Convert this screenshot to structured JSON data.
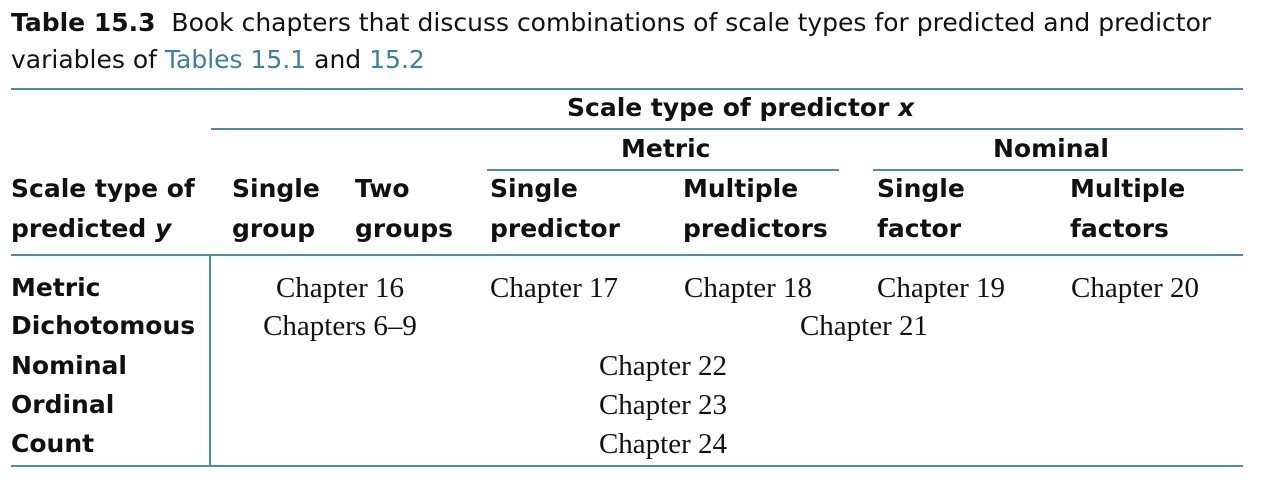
{
  "caption": {
    "number": "Table 15.3",
    "text_1": "Book chapters that discuss combinations of scale types for predicted and predictor variables of",
    "ref_1": "Tables 15.1",
    "and": "and",
    "ref_2": "15.2"
  },
  "header": {
    "predictor_title_prefix": "Scale type of predictor",
    "predictor_var": "x",
    "metric_group": "Metric",
    "nominal_group": "Nominal",
    "predicted_line1": "Scale type of",
    "predicted_line2_prefix": "predicted",
    "predicted_var": "y",
    "columns": [
      {
        "line1": "Single",
        "line2": "group"
      },
      {
        "line1": "Two",
        "line2": "groups"
      },
      {
        "line1": "Single",
        "line2": "predictor"
      },
      {
        "line1": "Multiple",
        "line2": "predictors"
      },
      {
        "line1": "Single",
        "line2": "factor"
      },
      {
        "line1": "Multiple",
        "line2": "factors"
      }
    ]
  },
  "rows": {
    "metric": {
      "label": "Metric",
      "c1": "Chapter 16",
      "c2": "Chapter 17",
      "c3": "Chapter 18",
      "c4": "Chapter 19",
      "c5": "Chapter 20"
    },
    "dichotomous": {
      "label": "Dichotomous",
      "c1": "Chapters 6–9",
      "c2": "Chapter 21"
    },
    "nominal": {
      "label": "Nominal",
      "c1": "Chapter 22"
    },
    "ordinal": {
      "label": "Ordinal",
      "c1": "Chapter 23"
    },
    "count": {
      "label": "Count",
      "c1": "Chapter 24"
    }
  }
}
